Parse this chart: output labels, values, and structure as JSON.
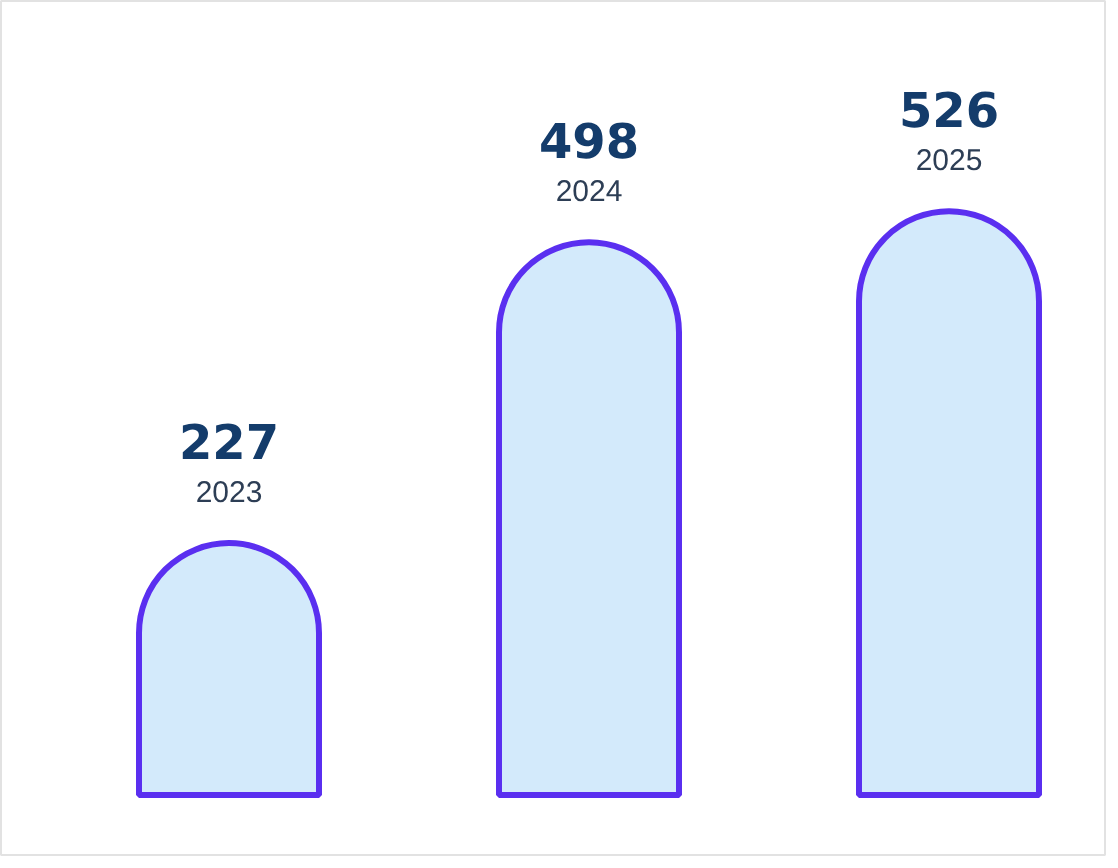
{
  "chart_data": {
    "type": "bar",
    "categories": [
      "2023",
      "2024",
      "2025"
    ],
    "values": [
      227,
      498,
      526
    ],
    "color": "#d3eafb",
    "data_labels": true,
    "tick_labels": "x"
  }
}
